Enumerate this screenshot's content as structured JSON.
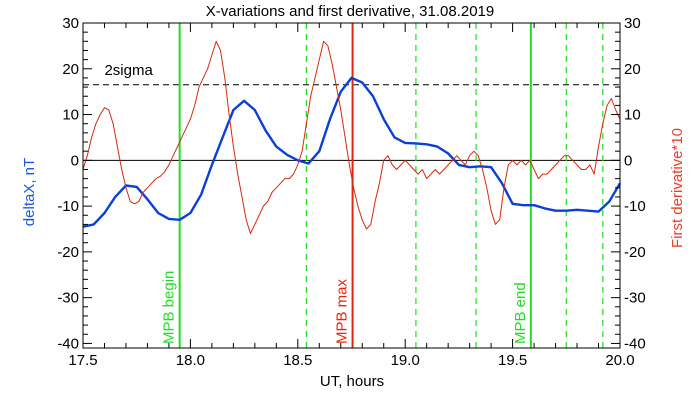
{
  "chart_data": {
    "type": "line",
    "title": "X-variations and first derivative, 31.08.2019",
    "xlabel": "UT, hours",
    "ylabel_left": "deltaX, nT",
    "ylabel_right": "First derivative*10",
    "xlim": [
      17.5,
      20.0
    ],
    "ylim": [
      -41,
      30
    ],
    "x_ticks": [
      17.5,
      18.0,
      18.5,
      19.0,
      19.5,
      20.0
    ],
    "x_tick_labels": [
      "17.5",
      "18.0",
      "18.5",
      "19.0",
      "19.5",
      "20.0"
    ],
    "y_ticks": [
      30,
      20,
      10,
      0,
      -10,
      -20,
      -30,
      -40
    ],
    "y_tick_labels": [
      "30",
      "20",
      "10",
      "0",
      "-10",
      "-20",
      "-30",
      "-40"
    ],
    "colors": {
      "deltaX": "#0b3fd8",
      "derivative": "#d42a10",
      "mpb": "#22dd22",
      "mpb_max": "#e8240c",
      "left_label": "#1a55e8",
      "right_label": "#e8402a"
    },
    "threshold": {
      "label": "2sigma",
      "value": 16.5
    },
    "zero_line": 0,
    "vertical_lines": [
      {
        "x": 17.95,
        "style": "solid",
        "role": "mpb",
        "label": "MPB begin"
      },
      {
        "x": 18.755,
        "style": "solid",
        "role": "mpb_max",
        "label": "MPB max"
      },
      {
        "x": 19.585,
        "style": "solid",
        "role": "mpb",
        "label": "MPB end"
      },
      {
        "x": 18.54,
        "style": "dashed",
        "role": "mpb",
        "label": ""
      },
      {
        "x": 19.05,
        "style": "dashed",
        "role": "mpb",
        "label": ""
      },
      {
        "x": 19.33,
        "style": "dashed",
        "role": "mpb",
        "label": ""
      },
      {
        "x": 19.75,
        "style": "dashed",
        "role": "mpb",
        "label": ""
      },
      {
        "x": 19.92,
        "style": "dashed",
        "role": "mpb",
        "label": ""
      }
    ],
    "series": [
      {
        "key": "deltaX",
        "x": [
          17.5,
          17.55,
          17.6,
          17.65,
          17.7,
          17.75,
          17.8,
          17.85,
          17.9,
          17.95,
          18.0,
          18.05,
          18.1,
          18.15,
          18.2,
          18.25,
          18.3,
          18.35,
          18.4,
          18.45,
          18.5,
          18.55,
          18.6,
          18.65,
          18.7,
          18.75,
          18.8,
          18.85,
          18.9,
          18.95,
          19.0,
          19.05,
          19.1,
          19.15,
          19.2,
          19.25,
          19.3,
          19.35,
          19.4,
          19.45,
          19.5,
          19.55,
          19.6,
          19.65,
          19.7,
          19.75,
          19.8,
          19.85,
          19.9,
          19.95,
          20.0
        ],
        "values": [
          -14.5,
          -14,
          -11.5,
          -8,
          -5.5,
          -5.8,
          -8.5,
          -11.5,
          -12.8,
          -13,
          -11.5,
          -7.5,
          -1,
          5,
          11,
          13,
          11,
          6.5,
          3,
          1.2,
          0,
          -0.7,
          2,
          9,
          15,
          18,
          17,
          14,
          9,
          5,
          3.8,
          3.7,
          3.5,
          3,
          1.5,
          -1,
          -1.5,
          -1.3,
          -1.5,
          -5,
          -9.5,
          -9.8,
          -9.8,
          -10.5,
          -11,
          -11,
          -10.8,
          -11,
          -11.2,
          -9,
          -5
        ]
      },
      {
        "key": "derivative",
        "x": [
          17.5,
          17.52,
          17.54,
          17.56,
          17.58,
          17.6,
          17.62,
          17.64,
          17.66,
          17.68,
          17.7,
          17.72,
          17.74,
          17.76,
          17.78,
          17.8,
          17.82,
          17.84,
          17.86,
          17.88,
          17.9,
          17.92,
          17.94,
          17.96,
          17.98,
          18.0,
          18.02,
          18.04,
          18.06,
          18.08,
          18.1,
          18.12,
          18.14,
          18.16,
          18.18,
          18.2,
          18.22,
          18.24,
          18.26,
          18.28,
          18.3,
          18.32,
          18.34,
          18.36,
          18.38,
          18.4,
          18.42,
          18.44,
          18.46,
          18.48,
          18.5,
          18.52,
          18.54,
          18.56,
          18.58,
          18.6,
          18.62,
          18.64,
          18.66,
          18.68,
          18.7,
          18.72,
          18.74,
          18.76,
          18.78,
          18.8,
          18.82,
          18.84,
          18.86,
          18.88,
          18.9,
          18.92,
          18.94,
          18.96,
          18.98,
          19.0,
          19.02,
          19.04,
          19.06,
          19.08,
          19.1,
          19.12,
          19.14,
          19.16,
          19.18,
          19.2,
          19.22,
          19.24,
          19.26,
          19.28,
          19.3,
          19.32,
          19.34,
          19.36,
          19.38,
          19.4,
          19.42,
          19.44,
          19.46,
          19.48,
          19.5,
          19.52,
          19.54,
          19.56,
          19.58,
          19.6,
          19.62,
          19.64,
          19.66,
          19.68,
          19.7,
          19.72,
          19.74,
          19.76,
          19.78,
          19.8,
          19.82,
          19.84,
          19.86,
          19.88,
          19.9,
          19.92,
          19.94,
          19.96,
          19.98,
          20.0
        ],
        "values": [
          -2,
          1,
          5,
          8,
          10,
          11.5,
          11,
          8,
          3,
          -2,
          -6,
          -9,
          -9.5,
          -9,
          -7,
          -6,
          -5,
          -4,
          -3.5,
          -2.5,
          -1,
          1,
          3,
          5,
          7,
          9,
          12,
          16,
          18,
          20,
          23,
          26,
          24,
          18,
          10,
          3,
          -3,
          -8,
          -13,
          -16,
          -14,
          -12,
          -10,
          -9,
          -7,
          -6,
          -5,
          -4,
          -4,
          -3,
          -1,
          2,
          8,
          14,
          18,
          22,
          26,
          25,
          21,
          16,
          11,
          5,
          -1,
          -6,
          -10,
          -13,
          -15,
          -14,
          -9,
          -5,
          0,
          1,
          -1,
          -2,
          -1,
          0,
          -1,
          -2,
          -3,
          -2,
          -4,
          -3,
          -2,
          -3,
          -2,
          -1,
          0,
          1,
          0,
          -1,
          1,
          2,
          1,
          -2,
          -6,
          -11,
          -14,
          -13,
          -6,
          -1,
          0,
          -1,
          0,
          -1,
          0,
          -2,
          -4,
          -3,
          -3,
          -2,
          -1,
          0,
          1,
          1,
          0,
          -1,
          -2,
          -2,
          -1,
          -3,
          3,
          8,
          12,
          13.5,
          11,
          9
        ]
      }
    ]
  }
}
